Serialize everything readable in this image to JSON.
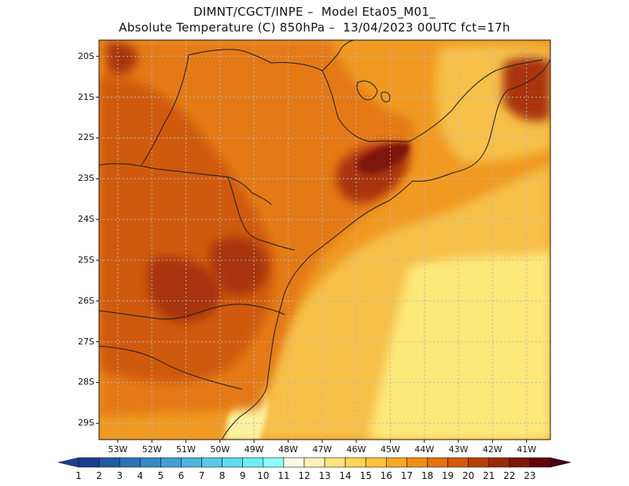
{
  "header": {
    "line1": "DIMNT/CGCT/INPE –  Model Eta05_M01_",
    "line2": "Absolute Temperature (C) 850hPa –  13/04/2023 00UTC fct=17h"
  },
  "map": {
    "lat_labels": [
      "20S",
      "21S",
      "22S",
      "23S",
      "24S",
      "25S",
      "26S",
      "27S",
      "28S",
      "29S"
    ],
    "lon_labels": [
      "53W",
      "52W",
      "51W",
      "50W",
      "49W",
      "48W",
      "47W",
      "46W",
      "45W",
      "44W",
      "43W",
      "42W",
      "41W"
    ],
    "gridlines": true,
    "background_field": "850hPa temperature (C)"
  },
  "colorbar": {
    "labels": [
      "1",
      "2",
      "3",
      "4",
      "5",
      "6",
      "7",
      "8",
      "9",
      "10",
      "11",
      "12",
      "13",
      "14",
      "15",
      "16",
      "17",
      "18",
      "19",
      "20",
      "21",
      "22",
      "23"
    ],
    "colors": [
      "#1b3f8f",
      "#215aa5",
      "#2b73b8",
      "#3689c6",
      "#42a0d4",
      "#4eb6df",
      "#58c9e6",
      "#5fdbee",
      "#6aeef6",
      "#8ffdfd",
      "#fff7e3",
      "#fff2b6",
      "#ffe57f",
      "#ffd554",
      "#fbc337",
      "#f6aa22",
      "#ee8f14",
      "#e4720c",
      "#d25a08",
      "#b74006",
      "#9a2a07",
      "#7e170a",
      "#64030c"
    ],
    "left_arrow_color": "#1b3f8f",
    "right_arrow_color": "#4a0212"
  },
  "field_colors": {
    "cool": "#fde87a",
    "mild": "#f6c04a",
    "warm": "#f09a22",
    "hot": "#e47a12",
    "hotter": "#cf5a0c",
    "hottest": "#a83409",
    "peak": "#7d1309",
    "coast": "#fbf0a0"
  }
}
